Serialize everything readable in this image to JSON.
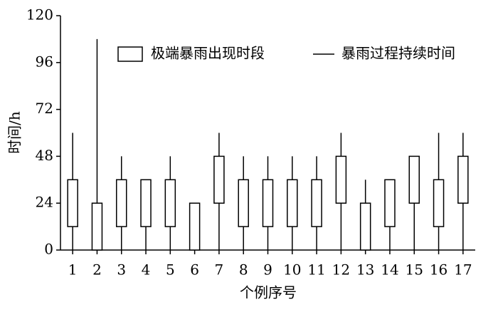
{
  "chart_data": {
    "type": "floating_bar_with_lines",
    "x_label": "个例序号",
    "y_label": "时间/h",
    "categories": [
      "1",
      "2",
      "3",
      "4",
      "5",
      "6",
      "7",
      "8",
      "9",
      "10",
      "11",
      "12",
      "13",
      "14",
      "15",
      "16",
      "17"
    ],
    "series": [
      {
        "name": "极端暴雨出现时段",
        "color": "#000000",
        "low": [
          12,
          0,
          12,
          12,
          12,
          0,
          24,
          12,
          12,
          12,
          12,
          24,
          0,
          12,
          24,
          12,
          24
        ],
        "high": [
          36,
          24,
          36,
          36,
          36,
          24,
          48,
          36,
          36,
          36,
          36,
          48,
          24,
          36,
          48,
          36,
          48
        ]
      },
      {
        "name": "暴雨过程持续时间",
        "color": "#000000",
        "values": [
          60,
          108,
          48,
          36,
          48,
          24,
          60,
          48,
          48,
          48,
          48,
          60,
          36,
          36,
          48,
          60,
          60
        ]
      }
    ],
    "ylim": [
      0,
      120
    ],
    "yticks": [
      0,
      24,
      48,
      72,
      96,
      120
    ]
  }
}
